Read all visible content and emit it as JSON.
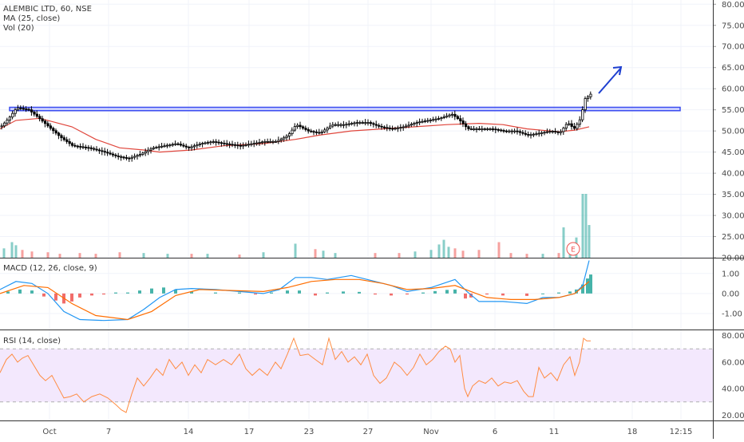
{
  "header": {
    "symbol_line": "ALEMBIC LTD, 60, NSE",
    "ma_label": "MA (25, close)",
    "vol_label": "Vol (20)"
  },
  "macd_pane": {
    "label": "MACD (12, 26, close, 9)"
  },
  "rsi_pane": {
    "label": "RSI (14, close)"
  },
  "earnings_marker": {
    "label": "E"
  },
  "colors": {
    "up": "#26a69a",
    "down": "#ef5350",
    "candle": "#000000",
    "ma": "#e0463c",
    "macd_line": "#2196f3",
    "signal_line": "#ff6d00",
    "rsi_line": "#ff8c42",
    "rsi_band": "#f3e8fd",
    "resistance": "#3b4cf0",
    "arrow": "#1e3fd0",
    "grid": "#f0f3fa",
    "axis_text": "#4a4a4a"
  },
  "chart_data": [
    {
      "type": "candlestick",
      "pane": "price",
      "x_tick_labels": [
        "Oct",
        "7",
        "14",
        "17",
        "23",
        "27",
        "Nov",
        "6",
        "11",
        "18",
        "12:15"
      ],
      "y_tick_labels": [
        "20.00",
        "25.00",
        "30.00",
        "35.00",
        "40.00",
        "45.00",
        "50.00",
        "55.00",
        "60.00",
        "65.00",
        "70.00",
        "75.00",
        "80.00"
      ],
      "ylim": [
        20,
        81
      ],
      "price_path": [
        [
          0,
          51.0
        ],
        [
          10,
          53.0
        ],
        [
          20,
          55.5
        ],
        [
          35,
          55.0
        ],
        [
          45,
          53.5
        ],
        [
          60,
          51.0
        ],
        [
          75,
          48.5
        ],
        [
          90,
          46.5
        ],
        [
          110,
          46.0
        ],
        [
          130,
          45.0
        ],
        [
          145,
          44.0
        ],
        [
          160,
          43.5
        ],
        [
          175,
          44.5
        ],
        [
          190,
          46.0
        ],
        [
          205,
          46.5
        ],
        [
          220,
          47.0
        ],
        [
          235,
          46.0
        ],
        [
          250,
          47.0
        ],
        [
          265,
          47.5
        ],
        [
          280,
          47.0
        ],
        [
          300,
          46.5
        ],
        [
          315,
          47.0
        ],
        [
          330,
          47.5
        ],
        [
          345,
          47.5
        ],
        [
          360,
          49.0
        ],
        [
          370,
          51.5
        ],
        [
          385,
          50.0
        ],
        [
          400,
          49.5
        ],
        [
          415,
          51.5
        ],
        [
          430,
          51.5
        ],
        [
          445,
          52.0
        ],
        [
          460,
          52.0
        ],
        [
          475,
          51.0
        ],
        [
          490,
          50.5
        ],
        [
          505,
          51.0
        ],
        [
          520,
          52.0
        ],
        [
          535,
          52.5
        ],
        [
          550,
          53.0
        ],
        [
          565,
          54.0
        ],
        [
          575,
          52.5
        ],
        [
          585,
          50.5
        ],
        [
          600,
          50.5
        ],
        [
          615,
          50.5
        ],
        [
          630,
          50.0
        ],
        [
          645,
          50.0
        ],
        [
          660,
          49.0
        ],
        [
          675,
          49.5
        ],
        [
          690,
          50.0
        ],
        [
          700,
          49.5
        ],
        [
          710,
          52.0
        ],
        [
          718,
          50.5
        ],
        [
          725,
          52.5
        ],
        [
          730,
          56.0
        ],
        [
          733,
          58.5
        ],
        [
          736,
          58.0
        ],
        [
          740,
          59.0
        ]
      ],
      "ma_25_close": [
        [
          0,
          50.5
        ],
        [
          20,
          52.5
        ],
        [
          50,
          53.0
        ],
        [
          90,
          51.0
        ],
        [
          120,
          48.0
        ],
        [
          150,
          46.0
        ],
        [
          180,
          45.5
        ],
        [
          200,
          45.0
        ],
        [
          240,
          45.5
        ],
        [
          280,
          46.5
        ],
        [
          330,
          47.0
        ],
        [
          370,
          48.0
        ],
        [
          400,
          49.0
        ],
        [
          440,
          50.0
        ],
        [
          480,
          50.5
        ],
        [
          520,
          51.0
        ],
        [
          560,
          51.5
        ],
        [
          600,
          51.8
        ],
        [
          630,
          51.5
        ],
        [
          660,
          50.5
        ],
        [
          700,
          49.8
        ],
        [
          720,
          50.2
        ],
        [
          738,
          51.0
        ]
      ],
      "resistance_zone": {
        "low": 54.8,
        "high": 55.6
      },
      "volume": [
        [
          5,
          1.2
        ],
        [
          15,
          2.0
        ],
        [
          20,
          1.6
        ],
        [
          28,
          1.0
        ],
        [
          40,
          0.8
        ],
        [
          60,
          0.7
        ],
        [
          75,
          0.5
        ],
        [
          100,
          0.6
        ],
        [
          120,
          0.5
        ],
        [
          150,
          0.7
        ],
        [
          180,
          0.6
        ],
        [
          210,
          0.5
        ],
        [
          240,
          0.5
        ],
        [
          260,
          0.5
        ],
        [
          300,
          0.4
        ],
        [
          330,
          0.7
        ],
        [
          370,
          1.8
        ],
        [
          395,
          1.1
        ],
        [
          405,
          0.9
        ],
        [
          420,
          0.6
        ],
        [
          470,
          0.6
        ],
        [
          500,
          0.6
        ],
        [
          520,
          0.8
        ],
        [
          540,
          1.0
        ],
        [
          550,
          1.7
        ],
        [
          556,
          2.3
        ],
        [
          562,
          1.4
        ],
        [
          570,
          1.2
        ],
        [
          580,
          0.9
        ],
        [
          600,
          1.0
        ],
        [
          625,
          2.0
        ],
        [
          640,
          0.6
        ],
        [
          660,
          0.5
        ],
        [
          680,
          0.5
        ],
        [
          700,
          0.6
        ],
        [
          706,
          3.9
        ],
        [
          714,
          1.6
        ],
        [
          722,
          2.6
        ],
        [
          730,
          8.2
        ],
        [
          734,
          8.2
        ],
        [
          738,
          4.2
        ]
      ]
    },
    {
      "type": "line",
      "pane": "macd",
      "y_tick_labels": [
        "1.00",
        "0.00",
        "-1.00"
      ],
      "ylim": [
        -1.8,
        1.75
      ],
      "macd": [
        [
          0,
          0.2
        ],
        [
          20,
          0.6
        ],
        [
          40,
          0.5
        ],
        [
          60,
          0.0
        ],
        [
          80,
          -0.9
        ],
        [
          100,
          -1.3
        ],
        [
          130,
          -1.35
        ],
        [
          160,
          -1.3
        ],
        [
          180,
          -0.8
        ],
        [
          200,
          -0.2
        ],
        [
          220,
          0.2
        ],
        [
          240,
          0.25
        ],
        [
          270,
          0.2
        ],
        [
          300,
          0.1
        ],
        [
          330,
          0.0
        ],
        [
          350,
          0.2
        ],
        [
          370,
          0.8
        ],
        [
          390,
          0.8
        ],
        [
          410,
          0.7
        ],
        [
          440,
          0.9
        ],
        [
          460,
          0.7
        ],
        [
          490,
          0.4
        ],
        [
          510,
          0.1
        ],
        [
          540,
          0.3
        ],
        [
          570,
          0.7
        ],
        [
          585,
          0.1
        ],
        [
          600,
          -0.4
        ],
        [
          630,
          -0.4
        ],
        [
          660,
          -0.5
        ],
        [
          680,
          -0.2
        ],
        [
          700,
          -0.2
        ],
        [
          720,
          0.0
        ],
        [
          730,
          0.4
        ],
        [
          738,
          1.65
        ]
      ],
      "signal": [
        [
          0,
          0.0
        ],
        [
          30,
          0.4
        ],
        [
          60,
          0.3
        ],
        [
          90,
          -0.5
        ],
        [
          120,
          -1.1
        ],
        [
          160,
          -1.3
        ],
        [
          190,
          -0.9
        ],
        [
          220,
          -0.1
        ],
        [
          250,
          0.2
        ],
        [
          290,
          0.15
        ],
        [
          330,
          0.1
        ],
        [
          360,
          0.3
        ],
        [
          390,
          0.6
        ],
        [
          420,
          0.7
        ],
        [
          450,
          0.7
        ],
        [
          480,
          0.5
        ],
        [
          510,
          0.2
        ],
        [
          540,
          0.25
        ],
        [
          570,
          0.4
        ],
        [
          590,
          0.1
        ],
        [
          610,
          -0.2
        ],
        [
          640,
          -0.3
        ],
        [
          670,
          -0.3
        ],
        [
          700,
          -0.2
        ],
        [
          720,
          0.0
        ],
        [
          738,
          0.6
        ]
      ],
      "histogram": [
        [
          10,
          0.1
        ],
        [
          25,
          0.2
        ],
        [
          40,
          0.15
        ],
        [
          55,
          -0.15
        ],
        [
          70,
          -0.35
        ],
        [
          80,
          -0.5
        ],
        [
          90,
          -0.4
        ],
        [
          100,
          -0.2
        ],
        [
          115,
          -0.1
        ],
        [
          130,
          -0.05
        ],
        [
          145,
          0.05
        ],
        [
          160,
          0.05
        ],
        [
          175,
          0.15
        ],
        [
          190,
          0.25
        ],
        [
          205,
          0.3
        ],
        [
          220,
          0.2
        ],
        [
          240,
          0.1
        ],
        [
          270,
          0.05
        ],
        [
          300,
          0.05
        ],
        [
          320,
          -0.05
        ],
        [
          340,
          0.05
        ],
        [
          360,
          0.15
        ],
        [
          375,
          0.15
        ],
        [
          395,
          -0.1
        ],
        [
          410,
          0.05
        ],
        [
          430,
          0.1
        ],
        [
          450,
          0.08
        ],
        [
          470,
          -0.05
        ],
        [
          490,
          -0.1
        ],
        [
          510,
          -0.05
        ],
        [
          530,
          0.05
        ],
        [
          545,
          0.12
        ],
        [
          560,
          0.18
        ],
        [
          570,
          0.2
        ],
        [
          583,
          -0.25
        ],
        [
          590,
          -0.2
        ],
        [
          610,
          -0.05
        ],
        [
          630,
          -0.1
        ],
        [
          660,
          -0.12
        ],
        [
          680,
          0.0
        ],
        [
          700,
          0.05
        ],
        [
          714,
          0.1
        ],
        [
          722,
          0.2
        ],
        [
          730,
          0.45
        ],
        [
          736,
          0.75
        ],
        [
          740,
          0.95
        ]
      ]
    },
    {
      "type": "line",
      "pane": "rsi",
      "y_tick_labels": [
        "80.00",
        "60.00",
        "40.00",
        "20.00"
      ],
      "ylim": [
        16,
        84
      ],
      "band": [
        30,
        70
      ],
      "rsi": [
        [
          0,
          52
        ],
        [
          8,
          62
        ],
        [
          15,
          66
        ],
        [
          22,
          60
        ],
        [
          28,
          63
        ],
        [
          35,
          65
        ],
        [
          42,
          58
        ],
        [
          50,
          50
        ],
        [
          57,
          46
        ],
        [
          65,
          50
        ],
        [
          72,
          42
        ],
        [
          80,
          33
        ],
        [
          88,
          34
        ],
        [
          96,
          36
        ],
        [
          105,
          30
        ],
        [
          115,
          34
        ],
        [
          125,
          36
        ],
        [
          135,
          33
        ],
        [
          145,
          28
        ],
        [
          152,
          24
        ],
        [
          158,
          22
        ],
        [
          165,
          36
        ],
        [
          172,
          48
        ],
        [
          180,
          42
        ],
        [
          188,
          48
        ],
        [
          196,
          55
        ],
        [
          204,
          50
        ],
        [
          212,
          62
        ],
        [
          220,
          55
        ],
        [
          228,
          60
        ],
        [
          236,
          50
        ],
        [
          244,
          58
        ],
        [
          252,
          52
        ],
        [
          260,
          62
        ],
        [
          270,
          58
        ],
        [
          280,
          62
        ],
        [
          290,
          58
        ],
        [
          300,
          66
        ],
        [
          308,
          55
        ],
        [
          316,
          50
        ],
        [
          325,
          55
        ],
        [
          335,
          50
        ],
        [
          345,
          60
        ],
        [
          352,
          55
        ],
        [
          360,
          66
        ],
        [
          368,
          78
        ],
        [
          376,
          65
        ],
        [
          386,
          66
        ],
        [
          395,
          62
        ],
        [
          404,
          58
        ],
        [
          412,
          78
        ],
        [
          420,
          62
        ],
        [
          428,
          68
        ],
        [
          436,
          60
        ],
        [
          444,
          64
        ],
        [
          452,
          58
        ],
        [
          460,
          66
        ],
        [
          468,
          50
        ],
        [
          476,
          44
        ],
        [
          484,
          48
        ],
        [
          494,
          60
        ],
        [
          502,
          56
        ],
        [
          510,
          50
        ],
        [
          518,
          56
        ],
        [
          526,
          66
        ],
        [
          534,
          58
        ],
        [
          542,
          62
        ],
        [
          550,
          68
        ],
        [
          558,
          72
        ],
        [
          564,
          70
        ],
        [
          570,
          60
        ],
        [
          576,
          65
        ],
        [
          582,
          40
        ],
        [
          586,
          34
        ],
        [
          592,
          42
        ],
        [
          600,
          46
        ],
        [
          608,
          44
        ],
        [
          616,
          48
        ],
        [
          624,
          42
        ],
        [
          632,
          45
        ],
        [
          640,
          44
        ],
        [
          648,
          46
        ],
        [
          656,
          38
        ],
        [
          662,
          34
        ],
        [
          668,
          34
        ],
        [
          675,
          56
        ],
        [
          682,
          48
        ],
        [
          690,
          52
        ],
        [
          698,
          46
        ],
        [
          706,
          58
        ],
        [
          714,
          64
        ],
        [
          720,
          50
        ],
        [
          726,
          60
        ],
        [
          731,
          78
        ],
        [
          735,
          76
        ],
        [
          740,
          76
        ]
      ]
    }
  ]
}
